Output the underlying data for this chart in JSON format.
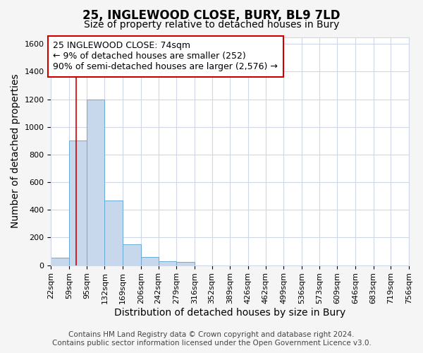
{
  "title": "25, INGLEWOOD CLOSE, BURY, BL9 7LD",
  "subtitle": "Size of property relative to detached houses in Bury",
  "xlabel": "Distribution of detached houses by size in Bury",
  "ylabel": "Number of detached properties",
  "footer_line1": "Contains HM Land Registry data © Crown copyright and database right 2024.",
  "footer_line2": "Contains public sector information licensed under the Open Government Licence v3.0.",
  "annotation_line1": "25 INGLEWOOD CLOSE: 74sqm",
  "annotation_line2": "← 9% of detached houses are smaller (252)",
  "annotation_line3": "90% of semi-detached houses are larger (2,576) →",
  "bin_edges": [
    22,
    59,
    95,
    132,
    169,
    206,
    242,
    279,
    316,
    352,
    389,
    426,
    462,
    499,
    536,
    573,
    609,
    646,
    683,
    719,
    756
  ],
  "bin_counts": [
    55,
    900,
    1200,
    470,
    150,
    60,
    30,
    25,
    0,
    0,
    0,
    0,
    0,
    0,
    0,
    0,
    0,
    0,
    0,
    0
  ],
  "bar_color": "#c8d8ec",
  "bar_edge_color": "#6aaad4",
  "vline_color": "#cc0000",
  "vline_x": 74,
  "ylim": [
    0,
    1650
  ],
  "yticks": [
    0,
    200,
    400,
    600,
    800,
    1000,
    1200,
    1400,
    1600
  ],
  "bg_color": "#f5f5f5",
  "plot_bg_color": "#ffffff",
  "grid_color": "#d0d8e8",
  "annotation_box_edgecolor": "#cc0000",
  "title_fontsize": 12,
  "subtitle_fontsize": 10,
  "axis_label_fontsize": 10,
  "tick_fontsize": 8,
  "annotation_fontsize": 9,
  "footer_fontsize": 7.5
}
